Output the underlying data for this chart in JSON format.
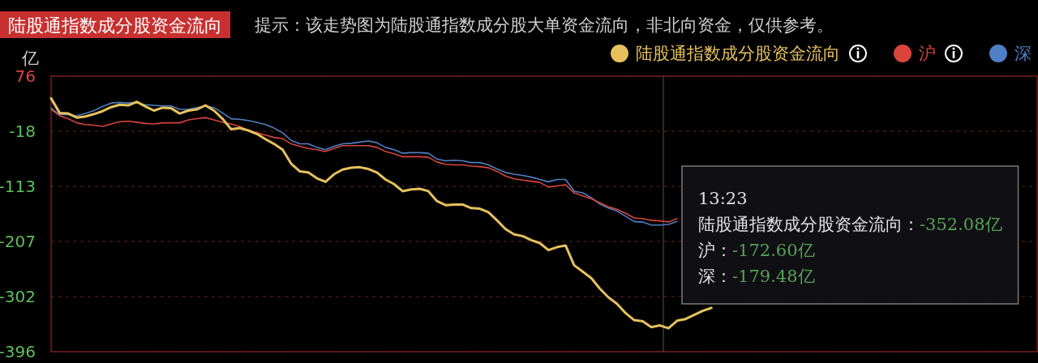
{
  "chart_data": {
    "type": "line",
    "title": "陆股通指数成分股资金流向",
    "subtitle": "提示：该走势图为陆股通指数成分股大单资金流向，非北向资金，仅供参考。",
    "ylabel": "亿",
    "categories": [
      null,
      null,
      null,
      null,
      null,
      null,
      null,
      null,
      null,
      null,
      null,
      null,
      null,
      null,
      null,
      null,
      null,
      null,
      null,
      null,
      null,
      null,
      null,
      null,
      null,
      null,
      null,
      null,
      null,
      null,
      null,
      null,
      null,
      null,
      null,
      null,
      null,
      null,
      null,
      null,
      null,
      null,
      null,
      null,
      null,
      null,
      null,
      null,
      null,
      null,
      null,
      null,
      null,
      null,
      null,
      null,
      null,
      null,
      null,
      null,
      null,
      null,
      null,
      null,
      null,
      null,
      null,
      null,
      null,
      null,
      null,
      null,
      null,
      null,
      null,
      null,
      null,
      null,
      null,
      null,
      null,
      null,
      null,
      null,
      null,
      null,
      null,
      null,
      null,
      null,
      null,
      null,
      null,
      null,
      null,
      null,
      null,
      null,
      null,
      null,
      null,
      null,
      null,
      null,
      null,
      null,
      null,
      null,
      null,
      null,
      null,
      null,
      null,
      null,
      null,
      null
    ],
    "series": [
      {
        "name": "陆股通指数成分股资金流向",
        "color": "#e6c15c",
        "values": [
          38,
          13,
          12,
          5,
          7,
          11,
          16,
          23,
          27,
          26,
          32,
          24,
          17,
          22,
          21,
          12,
          17,
          19,
          26,
          17,
          3,
          -15,
          -13,
          -17,
          -23,
          -32,
          -40,
          -50,
          -74,
          -87,
          -89,
          -99,
          -105,
          -92,
          -84,
          -81,
          -80,
          -83,
          -89,
          -101,
          -109,
          -121,
          -118,
          -117,
          -121,
          -138,
          -145,
          -144,
          -144,
          -150,
          -151,
          -157,
          -171,
          -186,
          -195,
          -198,
          -205,
          -210,
          -222,
          -217,
          -214,
          -248,
          -259,
          -270,
          -288,
          -303,
          -314,
          -330,
          -342,
          -344,
          -354,
          -351,
          -356,
          -343,
          -340,
          -333,
          -326,
          -321,
          null,
          null,
          null,
          null,
          null,
          null,
          null,
          null,
          null,
          null,
          null,
          null,
          null,
          null,
          null,
          null,
          null,
          null,
          null,
          null,
          null,
          null,
          null,
          null,
          null,
          null,
          null,
          null,
          null,
          null,
          null,
          null,
          null,
          null,
          null,
          null,
          null,
          null
        ]
      },
      {
        "name": "沪",
        "color": "#d9453c",
        "values": [
          19,
          8,
          3,
          -4,
          -7,
          -8,
          -10,
          -6,
          -2,
          -1,
          -3,
          -5,
          -6,
          -4,
          -4,
          -4,
          1,
          3,
          5,
          1,
          -3,
          -6,
          -10,
          -17,
          -21,
          -25,
          -29,
          -31,
          -40,
          -44,
          -48,
          -50,
          -53,
          -48,
          -43,
          -43,
          -43,
          -43,
          -46,
          -53,
          -57,
          -62,
          -62,
          -62,
          -63,
          -71,
          -75,
          -76,
          -76,
          -78,
          -79,
          -81,
          -87,
          -95,
          -100,
          -102,
          -104,
          -106,
          -114,
          -112,
          -110,
          -124,
          -129,
          -134,
          -141,
          -148,
          -152,
          -159,
          -167,
          -168,
          -171,
          -172,
          -174,
          -168,
          null,
          null,
          null,
          null,
          null,
          null,
          null,
          null,
          null,
          null,
          null,
          null,
          null,
          null,
          null,
          null,
          null,
          null,
          null,
          null,
          null,
          null,
          null,
          null,
          null,
          null,
          null,
          null,
          null,
          null,
          null,
          null,
          null,
          null,
          null,
          null,
          null,
          null,
          null,
          null,
          null,
          null
        ]
      },
      {
        "name": "深",
        "color": "#4f7fc4",
        "values": [
          21,
          10,
          10,
          8,
          12,
          17,
          24,
          30,
          31,
          30,
          31,
          27,
          26,
          25,
          25,
          19,
          19,
          22,
          25,
          22,
          13,
          3,
          2,
          0,
          -3,
          -7,
          -13,
          -21,
          -34,
          -40,
          -40,
          -46,
          -50,
          -44,
          -40,
          -39,
          -37,
          -35,
          -38,
          -46,
          -50,
          -56,
          -55,
          -55,
          -56,
          -66,
          -69,
          -68,
          -69,
          -72,
          -72,
          -76,
          -83,
          -89,
          -92,
          -94,
          -97,
          -101,
          -105,
          -101,
          -101,
          -121,
          -124,
          -132,
          -143,
          -150,
          -155,
          -164,
          -173,
          -174,
          -179,
          -179,
          -178,
          -173,
          null,
          null,
          null,
          null,
          null,
          null,
          null,
          null,
          null,
          null,
          null,
          null,
          null,
          null,
          null,
          null,
          null,
          null,
          null,
          null,
          null,
          null,
          null,
          null,
          null,
          null,
          null,
          null,
          null,
          null,
          null,
          null,
          null,
          null,
          null,
          null,
          null,
          null,
          null,
          null,
          null,
          null
        ]
      }
    ],
    "ylim": [
      -396,
      76
    ],
    "yticks": [
      76,
      {
        "value": -18.4,
        "label": "-18"
      },
      {
        "value": -112.8,
        "label": "-113"
      },
      {
        "value": -207.2,
        "label": "-207"
      },
      {
        "value": -301.6,
        "label": "-302"
      },
      -396
    ],
    "tick_labels": "y",
    "grid": "y",
    "legend": "top right",
    "marker": "none",
    "line_style": "solid",
    "annotations": [
      "13:23",
      "陆股通指数成分股资金流向：-352.08亿",
      "沪：-172.60亿",
      "深：-179.48亿"
    ]
  }
}
